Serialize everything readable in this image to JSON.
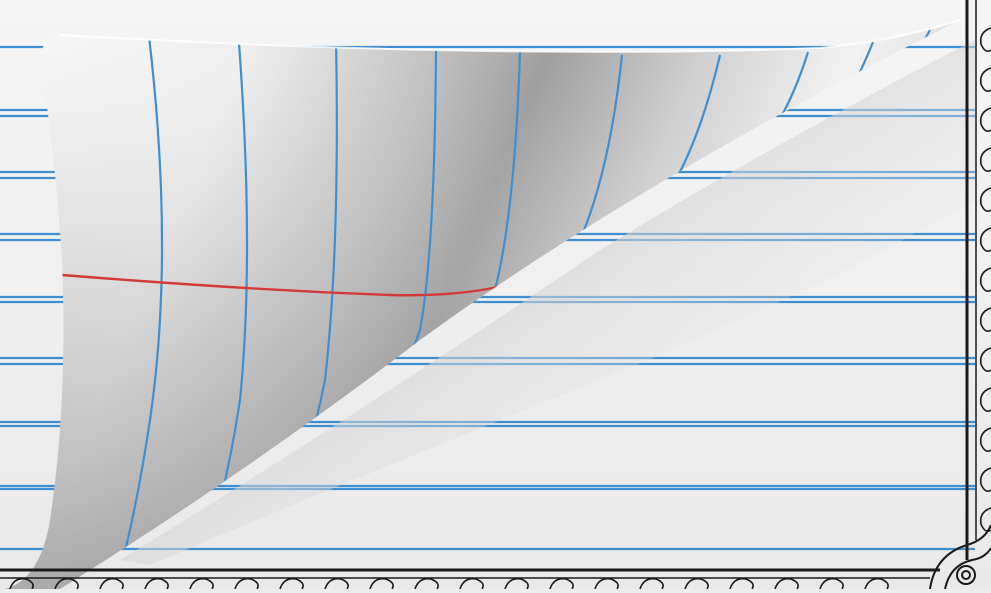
{
  "scene": {
    "description_name": "curled-lined-paper-illustration",
    "colors": {
      "paper": "#f4f4f4",
      "paper_shadow": "#c9c9c9",
      "rule_line": "#3f8fd0",
      "margin_line": "#d23a36",
      "border": "#1a1a1a"
    },
    "icons": [
      "page-curl-icon",
      "ornamental-border-icon"
    ]
  }
}
